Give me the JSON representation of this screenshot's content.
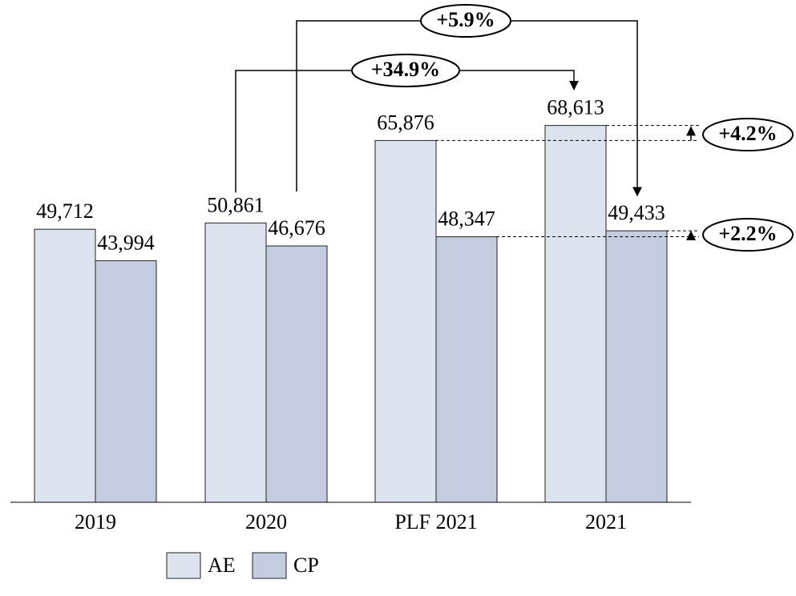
{
  "chart_data": {
    "type": "bar",
    "categories": [
      "2019",
      "2020",
      "PLF 2021",
      "2021"
    ],
    "series": [
      {
        "name": "AE",
        "color": "#dde3ee",
        "values": [
          49712,
          50861,
          65876,
          68613
        ],
        "value_labels": [
          "49,712",
          "50,861",
          "65,876",
          "68,613"
        ]
      },
      {
        "name": "CP",
        "color": "#c3cddf",
        "values": [
          43994,
          46676,
          48347,
          49433
        ],
        "value_labels": [
          "43,994",
          "46,676",
          "48,347",
          "49,433"
        ]
      }
    ],
    "ylim": [
      0,
      90000
    ],
    "annotations": [
      "+34.9%",
      "+5.9%",
      "+4.2%",
      "+2.2%"
    ]
  }
}
